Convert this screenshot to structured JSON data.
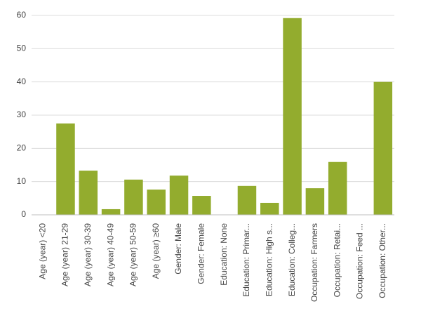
{
  "chart_data": {
    "type": "bar",
    "categories": [
      "Age (year) <20",
      "Age (year) 21-29",
      "Age (year) 30-39",
      "Age (year) 40-49",
      "Age (year) 50-59",
      "Age (year) ≥60",
      "Gender: Male",
      "Gender: Female",
      "Education: None",
      "Education: Primar...",
      "Education: High s...",
      "Education: Colleg...",
      "Occupation: Farmers",
      "Occupation: Retai...",
      "Occupation: Feed ...",
      "Occupation: Other..."
    ],
    "values": [
      0,
      27.5,
      13.3,
      1.7,
      10.6,
      7.6,
      11.8,
      5.7,
      0,
      8.7,
      3.6,
      59.2,
      8.0,
      15.9,
      0,
      40.0
    ],
    "color": "#93ac2e",
    "ylim": [
      0,
      60
    ],
    "yticks": [
      0,
      10,
      20,
      30,
      40,
      50,
      60
    ],
    "grid": true
  }
}
